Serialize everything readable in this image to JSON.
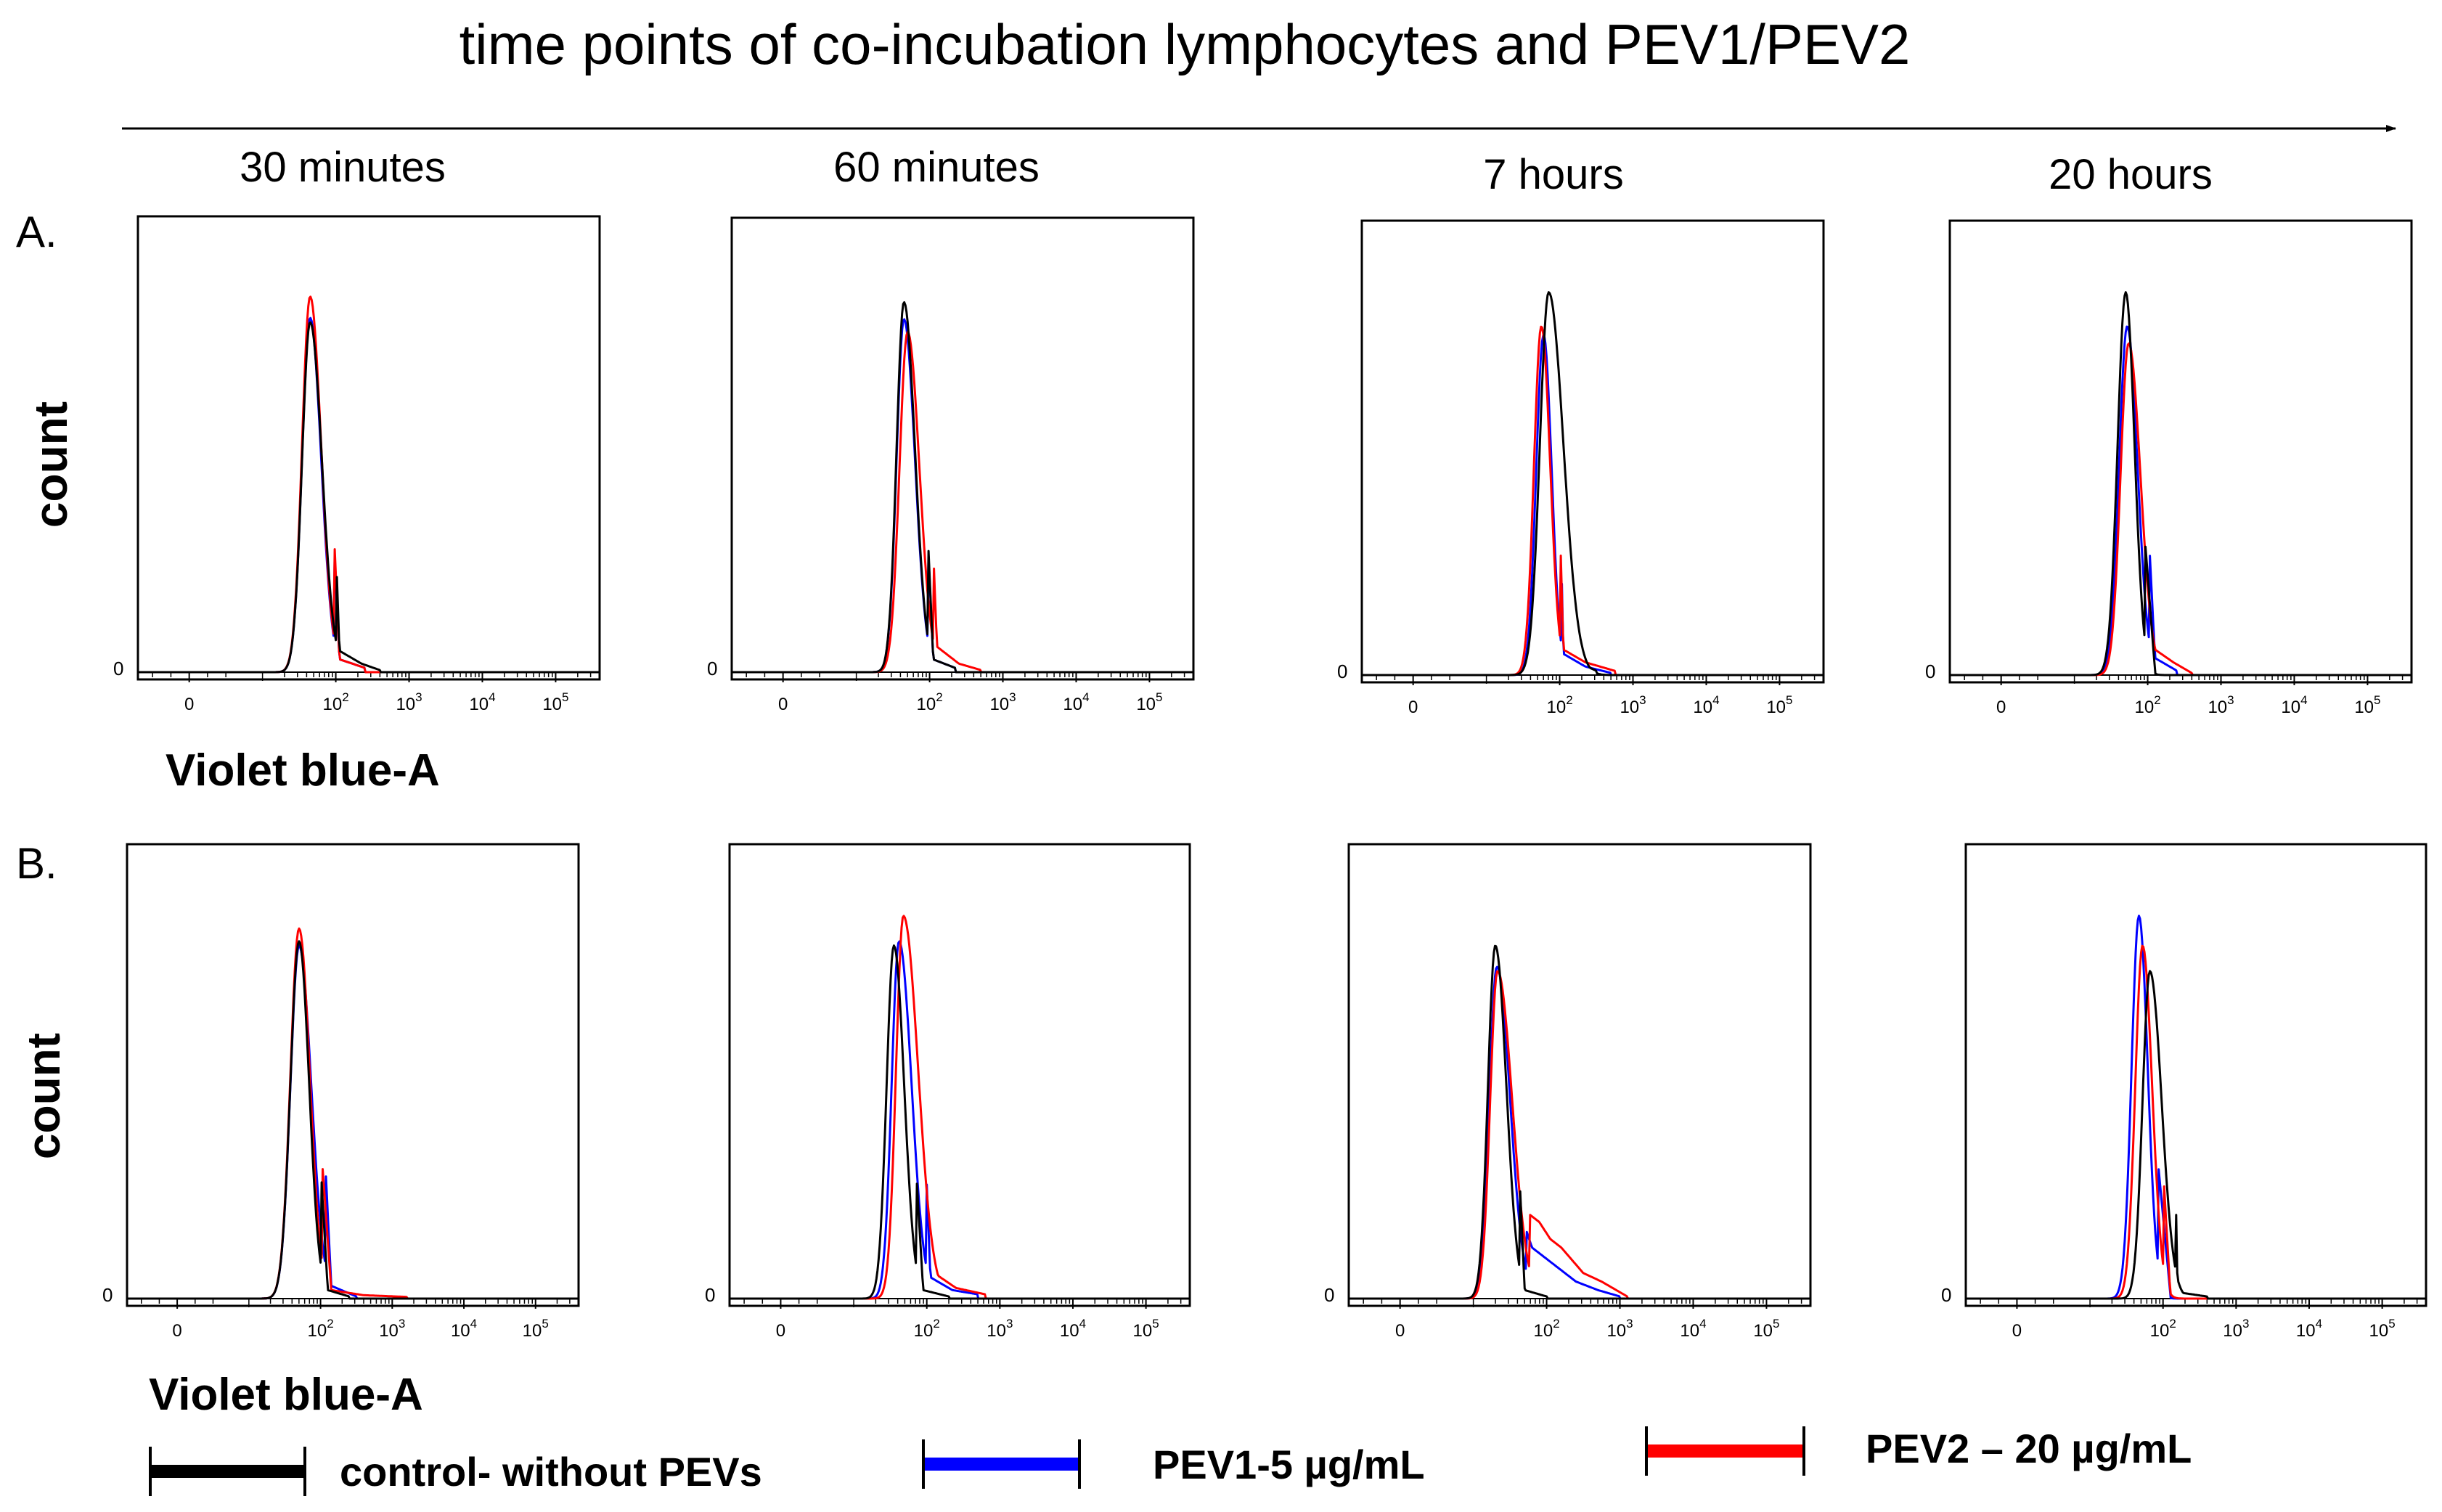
{
  "header": {
    "title": "time points of co-incubation lymphocytes and PEV1/PEV2"
  },
  "rows": [
    {
      "label": "A.",
      "ylabel": "count",
      "xlabel": "Violet blue-A"
    },
    {
      "label": "B.",
      "ylabel": "count",
      "xlabel": "Violet blue-A"
    }
  ],
  "columns": [
    "30 minutes",
    "60 minutes",
    "7 hours",
    "20 hours"
  ],
  "legend": [
    {
      "label": "control- without PEVs",
      "color": "#000000"
    },
    {
      "label": "PEV1-5 µg/mL",
      "color": "#0000ff"
    },
    {
      "label": "PEV2 – 20 µg/mL",
      "color": "#ff0000"
    }
  ],
  "chart_data": {
    "type": "line",
    "title": "time points of co-incubation lymphocytes and PEV1/PEV2",
    "xlabel": "Violet blue-A",
    "ylabel": "count",
    "x_scale": "biexponential (log)",
    "xlim": [
      -0.7,
      5.6
    ],
    "ylim": [
      0,
      1
    ],
    "x_ticks": [
      {
        "value": 0,
        "base": "0",
        "exp": ""
      },
      {
        "value": 2,
        "base": "10",
        "exp": "2"
      },
      {
        "value": 3,
        "base": "10",
        "exp": "3"
      },
      {
        "value": 4,
        "base": "10",
        "exp": "4"
      },
      {
        "value": 5,
        "base": "10",
        "exp": "5"
      }
    ],
    "y_ticks": [
      "0"
    ],
    "series_names": [
      "control- without PEVs",
      "PEV1-5 µg/mL",
      "PEV2 – 20 µg/mL"
    ],
    "series_colors": [
      "#000000",
      "#0000ff",
      "#ff0000"
    ],
    "panels": [
      {
        "row": "A.",
        "column": "30 minutes",
        "series": [
          {
            "name": "control- without PEVs",
            "peak_x": 1.65,
            "peak_y": 0.82,
            "width_left": 0.11,
            "width_right": 0.16,
            "tail": [
              [
                2.05,
                0.05
              ],
              [
                2.35,
                0.02
              ],
              [
                2.6,
                0.005
              ]
            ]
          },
          {
            "name": "PEV1-5 µg/mL",
            "peak_x": 1.65,
            "peak_y": 0.83,
            "width_left": 0.11,
            "width_right": 0.15,
            "tail": [
              [
                2.05,
                0.03
              ],
              [
                2.4,
                0.01
              ]
            ]
          },
          {
            "name": "PEV2 – 20 µg/mL",
            "peak_x": 1.65,
            "peak_y": 0.88,
            "width_left": 0.11,
            "width_right": 0.15,
            "tail": [
              [
                2.05,
                0.03
              ],
              [
                2.4,
                0.01
              ]
            ]
          }
        ]
      },
      {
        "row": "A.",
        "column": "60 minutes",
        "series": [
          {
            "name": "control- without PEVs",
            "peak_x": 1.65,
            "peak_y": 0.87,
            "width_left": 0.1,
            "width_right": 0.15,
            "tail": [
              [
                2.05,
                0.03
              ],
              [
                2.35,
                0.01
              ]
            ]
          },
          {
            "name": "PEV1-5 µg/mL",
            "peak_x": 1.65,
            "peak_y": 0.83,
            "width_left": 0.1,
            "width_right": 0.15,
            "tail": [
              [
                2.05,
                0.03
              ],
              [
                2.35,
                0.01
              ]
            ]
          },
          {
            "name": "PEV2 – 20 µg/mL",
            "peak_x": 1.7,
            "peak_y": 0.8,
            "width_left": 0.11,
            "width_right": 0.16,
            "tail": [
              [
                2.1,
                0.06
              ],
              [
                2.4,
                0.02
              ],
              [
                2.7,
                0.005
              ]
            ]
          }
        ]
      },
      {
        "row": "A.",
        "column": "7 hours",
        "series": [
          {
            "name": "control- without PEVs",
            "peak_x": 1.85,
            "peak_y": 0.9,
            "width_left": 0.12,
            "width_right": 0.2,
            "tail": [
              [
                2.25,
                0.03
              ],
              [
                2.5,
                0.01
              ]
            ]
          },
          {
            "name": "PEV1-5 µg/mL",
            "peak_x": 1.78,
            "peak_y": 0.8,
            "width_left": 0.1,
            "width_right": 0.11,
            "tail": [
              [
                2.05,
                0.05
              ],
              [
                2.35,
                0.02
              ],
              [
                2.7,
                0.005
              ]
            ]
          },
          {
            "name": "PEV2 – 20 µg/mL",
            "peak_x": 1.75,
            "peak_y": 0.82,
            "width_left": 0.1,
            "width_right": 0.12,
            "tail": [
              [
                2.05,
                0.06
              ],
              [
                2.35,
                0.03
              ],
              [
                2.75,
                0.01
              ]
            ]
          }
        ]
      },
      {
        "row": "A.",
        "column": "20 hours",
        "series": [
          {
            "name": "control- without PEVs",
            "peak_x": 1.7,
            "peak_y": 0.9,
            "width_left": 0.11,
            "width_right": 0.12,
            "tail": [
              [
                2.1,
                0.01
              ]
            ]
          },
          {
            "name": "PEV1-5 µg/mL",
            "peak_x": 1.72,
            "peak_y": 0.82,
            "width_left": 0.11,
            "width_right": 0.14,
            "tail": [
              [
                2.1,
                0.04
              ],
              [
                2.4,
                0.01
              ]
            ]
          },
          {
            "name": "PEV2 – 20 µg/mL",
            "peak_x": 1.74,
            "peak_y": 0.78,
            "width_left": 0.11,
            "width_right": 0.16,
            "tail": [
              [
                2.1,
                0.06
              ],
              [
                2.35,
                0.03
              ],
              [
                2.6,
                0.005
              ]
            ]
          }
        ]
      },
      {
        "row": "B.",
        "column": "30 minutes",
        "series": [
          {
            "name": "control- without PEVs",
            "peak_x": 1.7,
            "peak_y": 0.84,
            "width_left": 0.12,
            "width_right": 0.14,
            "tail": [
              [
                2.1,
                0.02
              ],
              [
                2.4,
                0.005
              ]
            ]
          },
          {
            "name": "PEV1-5 µg/mL",
            "peak_x": 1.7,
            "peak_y": 0.83,
            "width_left": 0.12,
            "width_right": 0.17,
            "tail": [
              [
                2.15,
                0.03
              ],
              [
                2.5,
                0.005
              ]
            ]
          },
          {
            "name": "PEV2 – 20 µg/mL",
            "peak_x": 1.7,
            "peak_y": 0.87,
            "width_left": 0.12,
            "width_right": 0.15,
            "tail": [
              [
                2.15,
                0.02
              ],
              [
                2.6,
                0.008
              ],
              [
                3.2,
                0.004
              ]
            ]
          }
        ]
      },
      {
        "row": "B.",
        "column": "60 minutes",
        "series": [
          {
            "name": "control- without PEVs",
            "peak_x": 1.55,
            "peak_y": 0.83,
            "width_left": 0.1,
            "width_right": 0.14,
            "tail": [
              [
                1.95,
                0.02
              ],
              [
                2.3,
                0.005
              ]
            ]
          },
          {
            "name": "PEV1-5 µg/mL",
            "peak_x": 1.62,
            "peak_y": 0.84,
            "width_left": 0.1,
            "width_right": 0.17,
            "tail": [
              [
                2.05,
                0.05
              ],
              [
                2.35,
                0.02
              ],
              [
                2.7,
                0.01
              ]
            ]
          },
          {
            "name": "PEV2 – 20 µg/mL",
            "peak_x": 1.68,
            "peak_y": 0.9,
            "width_left": 0.1,
            "width_right": 0.2,
            "tail": [
              [
                2.1,
                0.06
              ],
              [
                2.4,
                0.025
              ],
              [
                2.8,
                0.01
              ]
            ]
          }
        ]
      },
      {
        "row": "B.",
        "column": "7 hours",
        "series": [
          {
            "name": "control- without PEVs",
            "peak_x": 1.3,
            "peak_y": 0.83,
            "width_left": 0.1,
            "width_right": 0.15,
            "tail": [
              [
                1.7,
                0.02
              ],
              [
                2.0,
                0.005
              ]
            ]
          },
          {
            "name": "PEV1-5 µg/mL",
            "peak_x": 1.32,
            "peak_y": 0.78,
            "width_left": 0.1,
            "width_right": 0.18,
            "tail": [
              [
                1.55,
                0.25
              ],
              [
                1.8,
                0.12
              ],
              [
                2.1,
                0.08
              ],
              [
                2.4,
                0.04
              ],
              [
                2.7,
                0.02
              ],
              [
                3.0,
                0.005
              ]
            ]
          },
          {
            "name": "PEV2 – 20 µg/mL",
            "peak_x": 1.33,
            "peak_y": 0.77,
            "width_left": 0.1,
            "width_right": 0.2,
            "tail": [
              [
                1.6,
                0.22
              ],
              [
                1.9,
                0.18
              ],
              [
                2.05,
                0.14
              ],
              [
                2.2,
                0.12
              ],
              [
                2.5,
                0.06
              ],
              [
                2.75,
                0.04
              ],
              [
                3.1,
                0.005
              ]
            ]
          }
        ]
      },
      {
        "row": "B.",
        "column": "20 hours",
        "series": [
          {
            "name": "control- without PEVs",
            "peak_x": 1.82,
            "peak_y": 0.77,
            "width_left": 0.1,
            "width_right": 0.16,
            "tail": [
              [
                2.2,
                0.015
              ],
              [
                2.6,
                0.005
              ]
            ]
          },
          {
            "name": "PEV1-5 µg/mL",
            "peak_x": 1.67,
            "peak_y": 0.9,
            "width_left": 0.1,
            "width_right": 0.12,
            "tail": [
              [
                2.1,
                0.01
              ]
            ]
          },
          {
            "name": "PEV2 – 20 µg/mL",
            "peak_x": 1.72,
            "peak_y": 0.83,
            "width_left": 0.1,
            "width_right": 0.13,
            "tail": [
              [
                2.1,
                0.01
              ]
            ]
          }
        ]
      }
    ]
  }
}
